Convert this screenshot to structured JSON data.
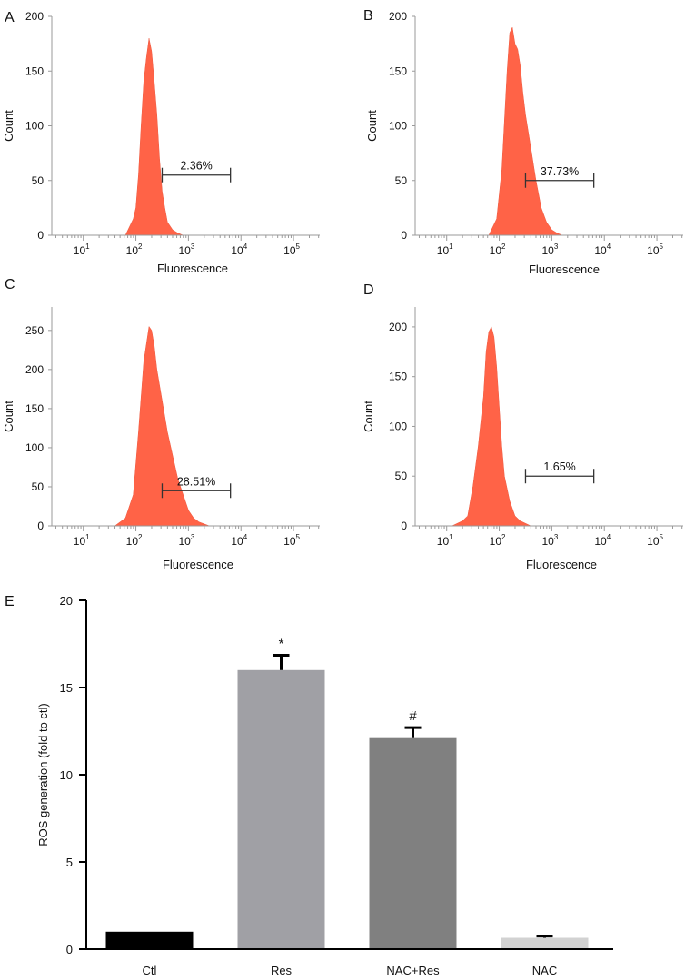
{
  "chart_data": [
    {
      "type": "area",
      "panel_label": "A",
      "xlabel": "Fluorescence",
      "ylabel": "Count",
      "x_scale": "log",
      "xlim_log10": [
        0.4,
        5.5
      ],
      "x_tick_labels": [
        "10",
        "10",
        "10",
        "10",
        "10"
      ],
      "x_tick_exponents": [
        "1",
        "2",
        "3",
        "4",
        "5"
      ],
      "ylim": [
        0,
        200
      ],
      "y_ticks": [
        0,
        50,
        100,
        150,
        200
      ],
      "gate": {
        "label": "2.36%",
        "from_log10": 2.5,
        "to_log10": 3.8,
        "y": 55
      },
      "series": [
        {
          "name": "histogram",
          "x_log10": [
            1.8,
            1.95,
            2.0,
            2.05,
            2.1,
            2.15,
            2.2,
            2.25,
            2.3,
            2.35,
            2.4,
            2.45,
            2.5,
            2.55,
            2.6,
            2.7,
            2.8,
            2.9
          ],
          "y": [
            0,
            15,
            25,
            55,
            100,
            140,
            162,
            180,
            168,
            140,
            110,
            70,
            40,
            25,
            12,
            5,
            2,
            0
          ]
        }
      ]
    },
    {
      "type": "area",
      "panel_label": "B",
      "xlabel": "Fluorescence",
      "ylabel": "Count",
      "x_scale": "log",
      "xlim_log10": [
        0.4,
        5.5
      ],
      "x_tick_labels": [
        "10",
        "10",
        "10",
        "10",
        "10"
      ],
      "x_tick_exponents": [
        "1",
        "2",
        "3",
        "4",
        "5"
      ],
      "ylim": [
        0,
        200
      ],
      "y_ticks": [
        0,
        50,
        100,
        150,
        200
      ],
      "gate": {
        "label": "37.73%",
        "from_log10": 2.5,
        "to_log10": 3.8,
        "y": 50
      },
      "series": [
        {
          "name": "histogram",
          "x_log10": [
            1.8,
            1.95,
            2.05,
            2.15,
            2.2,
            2.25,
            2.3,
            2.35,
            2.4,
            2.45,
            2.5,
            2.6,
            2.7,
            2.8,
            2.9,
            3.0,
            3.1,
            3.2
          ],
          "y": [
            0,
            15,
            60,
            150,
            185,
            190,
            175,
            170,
            155,
            130,
            110,
            80,
            50,
            25,
            12,
            5,
            2,
            0
          ]
        }
      ]
    },
    {
      "type": "area",
      "panel_label": "C",
      "xlabel": "Fluorescence",
      "ylabel": "Count",
      "x_scale": "log",
      "xlim_log10": [
        0.4,
        5.5
      ],
      "x_tick_labels": [
        "10",
        "10",
        "10",
        "10",
        "10"
      ],
      "x_tick_exponents": [
        "1",
        "2",
        "3",
        "4",
        "5"
      ],
      "ylim": [
        0,
        280
      ],
      "y_ticks": [
        0,
        50,
        100,
        150,
        200,
        250
      ],
      "gate": {
        "label": "28.51%",
        "from_log10": 2.5,
        "to_log10": 3.8,
        "y": 45
      },
      "series": [
        {
          "name": "histogram",
          "x_log10": [
            1.6,
            1.8,
            1.95,
            2.05,
            2.15,
            2.25,
            2.3,
            2.35,
            2.4,
            2.5,
            2.6,
            2.7,
            2.8,
            2.9,
            3.0,
            3.1,
            3.2,
            3.4
          ],
          "y": [
            0,
            10,
            40,
            120,
            210,
            255,
            250,
            230,
            200,
            160,
            120,
            90,
            60,
            40,
            20,
            10,
            5,
            0
          ]
        }
      ]
    },
    {
      "type": "area",
      "panel_label": "D",
      "xlabel": "Fluorescence",
      "ylabel": "Count",
      "x_scale": "log",
      "xlim_log10": [
        0.4,
        5.5
      ],
      "x_tick_labels": [
        "10",
        "10",
        "10",
        "10",
        "10"
      ],
      "x_tick_exponents": [
        "1",
        "2",
        "3",
        "4",
        "5"
      ],
      "ylim": [
        0,
        220
      ],
      "y_ticks": [
        0,
        50,
        100,
        150,
        200
      ],
      "gate": {
        "label": "1.65%",
        "from_log10": 2.5,
        "to_log10": 3.8,
        "y": 50
      },
      "series": [
        {
          "name": "histogram",
          "x_log10": [
            1.1,
            1.3,
            1.4,
            1.5,
            1.6,
            1.7,
            1.75,
            1.8,
            1.85,
            1.9,
            1.95,
            2.0,
            2.05,
            2.1,
            2.2,
            2.3,
            2.4,
            2.6
          ],
          "y": [
            0,
            5,
            10,
            40,
            80,
            130,
            175,
            195,
            200,
            190,
            160,
            120,
            80,
            50,
            25,
            10,
            5,
            0
          ]
        }
      ]
    },
    {
      "type": "bar",
      "panel_label": "E",
      "title": "",
      "xlabel": "",
      "ylabel": "ROS generation (fold to ctl)",
      "categories": [
        "Ctl",
        "Res",
        "NAC+Res",
        "NAC"
      ],
      "values": [
        1.0,
        16.0,
        12.1,
        0.65
      ],
      "errors": [
        0,
        0.85,
        0.6,
        0.1
      ],
      "colors": [
        "#000000",
        "#a0a0a5",
        "#808080",
        "#d2d2d2"
      ],
      "annotations": [
        "",
        "*",
        "#",
        ""
      ],
      "ylim": [
        0,
        20
      ],
      "y_ticks": [
        0,
        5,
        10,
        15,
        20
      ]
    }
  ]
}
